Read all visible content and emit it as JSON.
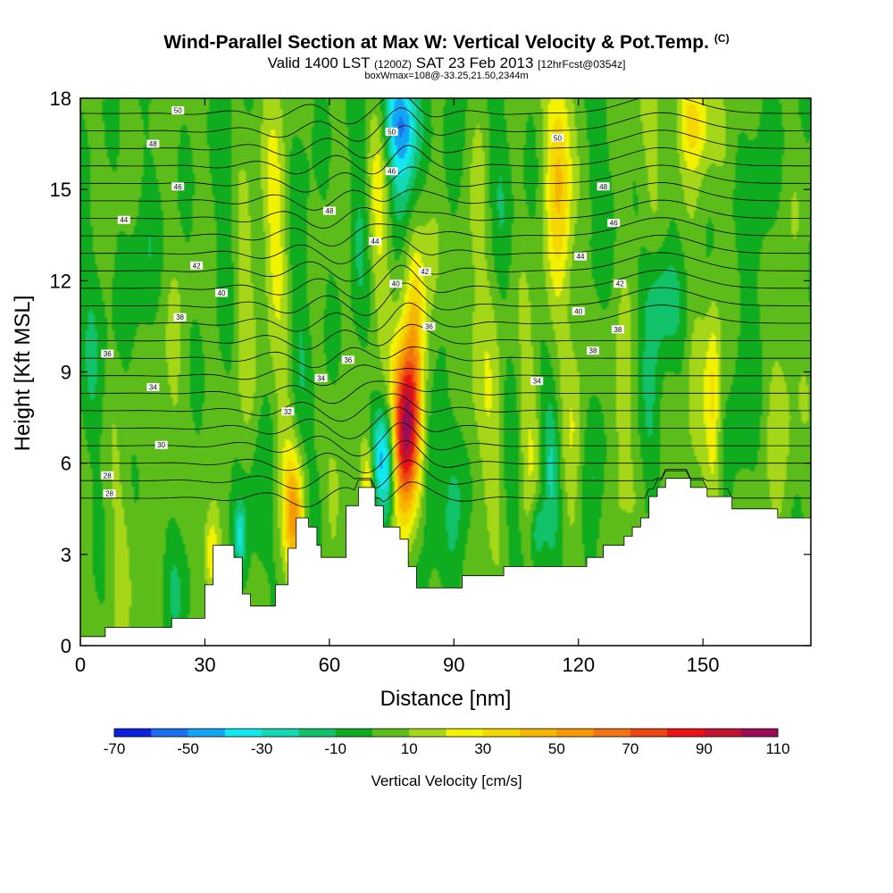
{
  "title": {
    "main": "Wind-Parallel Section at Max W: Vertical Velocity & Pot.Temp.",
    "copyright": "(C)",
    "valid_prefix": "Valid 1400 LST",
    "valid_utc": "(1200Z)",
    "valid_date": "SAT 23 Feb 2013",
    "forecast": "[12hrFcst@0354z]",
    "box_info": "boxWmax=108@-33.25,21.50,2344m"
  },
  "chart_data": {
    "type": "heatmap",
    "xlabel": "Distance [nm]",
    "ylabel": "Height [Kft MSL]",
    "xlim": [
      0,
      176
    ],
    "ylim": [
      0,
      18
    ],
    "xticks": [
      "0",
      "30",
      "60",
      "90",
      "120",
      "150"
    ],
    "yticks": [
      "0",
      "3",
      "6",
      "9",
      "12",
      "15",
      "18"
    ],
    "grid": false,
    "colorbar": {
      "label": "Vertical Velocity [cm/s]",
      "tick_labels": [
        "-70",
        "-50",
        "-30",
        "-10",
        "10",
        "30",
        "50",
        "70",
        "90",
        "110"
      ],
      "levels": [
        -70,
        -60,
        -50,
        -40,
        -30,
        -20,
        -10,
        0,
        10,
        20,
        30,
        40,
        50,
        60,
        70,
        80,
        90,
        100,
        110
      ],
      "colors": [
        "#0a22e0",
        "#1a6ff2",
        "#12a5f3",
        "#13e8f0",
        "#14d9b4",
        "#12c26a",
        "#0eac1e",
        "#5cbc1a",
        "#a5d718",
        "#f2f200",
        "#f4d800",
        "#f7b700",
        "#f79a00",
        "#f37212",
        "#ee4610",
        "#ea1214",
        "#c21230",
        "#9a0c56"
      ]
    },
    "terrain_kft": [
      [
        0,
        0.3
      ],
      [
        6,
        0.3
      ],
      [
        6,
        0.6
      ],
      [
        22,
        0.6
      ],
      [
        22,
        0.9
      ],
      [
        30,
        0.9
      ],
      [
        30,
        2.0
      ],
      [
        32,
        2.0
      ],
      [
        32,
        3.3
      ],
      [
        37,
        3.3
      ],
      [
        37,
        2.9
      ],
      [
        39,
        2.9
      ],
      [
        39,
        1.7
      ],
      [
        41,
        1.7
      ],
      [
        41,
        1.3
      ],
      [
        47,
        1.3
      ],
      [
        47,
        2.0
      ],
      [
        50,
        2.0
      ],
      [
        50,
        3.2
      ],
      [
        52,
        3.2
      ],
      [
        52,
        4.2
      ],
      [
        55,
        4.2
      ],
      [
        55,
        3.9
      ],
      [
        57,
        3.9
      ],
      [
        57,
        3.3
      ],
      [
        58,
        3.3
      ],
      [
        58,
        2.9
      ],
      [
        64,
        2.9
      ],
      [
        64,
        4.6
      ],
      [
        67,
        4.6
      ],
      [
        67,
        5.2
      ],
      [
        71,
        5.2
      ],
      [
        71,
        4.6
      ],
      [
        73,
        4.6
      ],
      [
        73,
        3.9
      ],
      [
        77,
        3.9
      ],
      [
        77,
        3.5
      ],
      [
        79,
        3.5
      ],
      [
        79,
        2.6
      ],
      [
        81,
        2.6
      ],
      [
        81,
        1.9
      ],
      [
        92,
        1.9
      ],
      [
        92,
        2.3
      ],
      [
        102,
        2.3
      ],
      [
        102,
        2.6
      ],
      [
        122,
        2.6
      ],
      [
        122,
        2.9
      ],
      [
        126,
        2.9
      ],
      [
        126,
        3.3
      ],
      [
        131,
        3.3
      ],
      [
        131,
        3.6
      ],
      [
        133,
        3.6
      ],
      [
        133,
        3.9
      ],
      [
        135,
        3.9
      ],
      [
        135,
        4.2
      ],
      [
        137,
        4.2
      ],
      [
        137,
        4.9
      ],
      [
        139,
        4.9
      ],
      [
        139,
        5.2
      ],
      [
        141,
        5.2
      ],
      [
        141,
        5.5
      ],
      [
        147,
        5.5
      ],
      [
        147,
        5.2
      ],
      [
        151,
        5.2
      ],
      [
        151,
        4.9
      ],
      [
        157,
        4.9
      ],
      [
        157,
        4.5
      ],
      [
        168,
        4.5
      ],
      [
        168,
        4.2
      ],
      [
        176,
        4.2
      ]
    ],
    "w_features": [
      {
        "x": 78.5,
        "y": 7.2,
        "w": 110,
        "sx": 2.4,
        "sy": 1.9
      },
      {
        "x": 80.5,
        "y": 10.5,
        "w": 25,
        "sx": 1.6,
        "sy": 1.8
      },
      {
        "x": 74,
        "y": 6.0,
        "w": -45,
        "sx": 1.5,
        "sy": 1.4
      },
      {
        "x": 71.5,
        "y": 6.2,
        "w": -25,
        "sx": 1.2,
        "sy": 1.0
      },
      {
        "x": 69.5,
        "y": 5.5,
        "w": 30,
        "sx": 1.2,
        "sy": 1.0
      },
      {
        "x": 51.5,
        "y": 4.3,
        "w": 45,
        "sx": 1.7,
        "sy": 1.4
      },
      {
        "x": 49,
        "y": 6.5,
        "w": 12,
        "sx": 2.0,
        "sy": 2.0
      },
      {
        "x": 43.5,
        "y": 4.3,
        "w": -12,
        "sx": 2.2,
        "sy": 2.2
      },
      {
        "x": 38.5,
        "y": 3.6,
        "w": -30,
        "sx": 1.0,
        "sy": 0.7
      },
      {
        "x": 31.5,
        "y": 3.0,
        "w": 30,
        "sx": 1.4,
        "sy": 1.0
      },
      {
        "x": 57,
        "y": 5.0,
        "w": -10,
        "sx": 1.8,
        "sy": 1.8
      },
      {
        "x": 62,
        "y": 4.5,
        "w": 12,
        "sx": 2.2,
        "sy": 1.8
      },
      {
        "x": 47,
        "y": 14.0,
        "w": 22,
        "sx": 2.2,
        "sy": 2.6
      },
      {
        "x": 53,
        "y": 12.0,
        "w": -12,
        "sx": 1.8,
        "sy": 3.5
      },
      {
        "x": 40,
        "y": 11.5,
        "w": 12,
        "sx": 2.0,
        "sy": 2.8
      },
      {
        "x": 35,
        "y": 15.0,
        "w": -10,
        "sx": 2.0,
        "sy": 2.5
      },
      {
        "x": 21,
        "y": 7.5,
        "w": 10,
        "sx": 2.5,
        "sy": 2.5
      },
      {
        "x": 15,
        "y": 12.5,
        "w": -10,
        "sx": 2.5,
        "sy": 2.5
      },
      {
        "x": 10,
        "y": 3.5,
        "w": 10,
        "sx": 2.5,
        "sy": 2.0
      },
      {
        "x": 3,
        "y": 10.0,
        "w": -10,
        "sx": 2.5,
        "sy": 3.0
      },
      {
        "x": 23,
        "y": 2.5,
        "w": -12,
        "sx": 2.5,
        "sy": 1.6
      },
      {
        "x": 77,
        "y": 17.5,
        "w": -40,
        "sx": 3.0,
        "sy": 1.2
      },
      {
        "x": 78,
        "y": 16.2,
        "w": -25,
        "sx": 2.4,
        "sy": 1.5
      },
      {
        "x": 72,
        "y": 14.5,
        "w": 22,
        "sx": 1.8,
        "sy": 2.2
      },
      {
        "x": 67,
        "y": 14.0,
        "w": -12,
        "sx": 1.8,
        "sy": 2.5
      },
      {
        "x": 85,
        "y": 12.5,
        "w": 12,
        "sx": 2.2,
        "sy": 3.0
      },
      {
        "x": 89,
        "y": 15.0,
        "w": -12,
        "sx": 2.0,
        "sy": 2.5
      },
      {
        "x": 95,
        "y": 12.0,
        "w": 12,
        "sx": 2.5,
        "sy": 3.0
      },
      {
        "x": 101,
        "y": 16.0,
        "w": -10,
        "sx": 2.2,
        "sy": 2.5
      },
      {
        "x": 115.5,
        "y": 16.2,
        "w": 35,
        "sx": 2.3,
        "sy": 2.2
      },
      {
        "x": 115.5,
        "y": 12.5,
        "w": 12,
        "sx": 2.5,
        "sy": 2.5
      },
      {
        "x": 124,
        "y": 16.0,
        "w": -10,
        "sx": 2.5,
        "sy": 2.5
      },
      {
        "x": 137,
        "y": 16.5,
        "w": 10,
        "sx": 2.5,
        "sy": 2.5
      },
      {
        "x": 148,
        "y": 17.3,
        "w": 32,
        "sx": 3.0,
        "sy": 1.2
      },
      {
        "x": 140,
        "y": 11.5,
        "w": -22,
        "sx": 3.0,
        "sy": 1.4
      },
      {
        "x": 164,
        "y": 14.0,
        "w": -10,
        "sx": 2.5,
        "sy": 3.0
      },
      {
        "x": 148,
        "y": 8.0,
        "w": 10,
        "sx": 2.0,
        "sy": 2.5
      },
      {
        "x": 152.5,
        "y": 8.0,
        "w": 28,
        "sx": 1.3,
        "sy": 2.5
      },
      {
        "x": 159,
        "y": 8.0,
        "w": -10,
        "sx": 2.0,
        "sy": 2.5
      },
      {
        "x": 169,
        "y": 8.5,
        "w": 12,
        "sx": 2.5,
        "sy": 3.0
      },
      {
        "x": 91,
        "y": 5.5,
        "w": -15,
        "sx": 2.3,
        "sy": 2.3
      },
      {
        "x": 84,
        "y": 6.0,
        "w": -20,
        "sx": 1.8,
        "sy": 2.0
      },
      {
        "x": 98,
        "y": 6.5,
        "w": 15,
        "sx": 2.5,
        "sy": 2.5
      },
      {
        "x": 104,
        "y": 5.0,
        "w": -10,
        "sx": 2.0,
        "sy": 2.5
      },
      {
        "x": 108,
        "y": 7.0,
        "w": 15,
        "sx": 2.0,
        "sy": 2.5
      },
      {
        "x": 113.5,
        "y": 6.0,
        "w": -25,
        "sx": 1.6,
        "sy": 1.7
      },
      {
        "x": 119,
        "y": 7.0,
        "w": 15,
        "sx": 1.8,
        "sy": 2.5
      },
      {
        "x": 124,
        "y": 6.5,
        "w": -12,
        "sx": 2.0,
        "sy": 2.5
      },
      {
        "x": 130,
        "y": 7.0,
        "w": 15,
        "sx": 2.0,
        "sy": 2.5
      },
      {
        "x": 137,
        "y": 7.0,
        "w": -10,
        "sx": 2.0,
        "sy": 2.5
      },
      {
        "x": 110,
        "y": 3.8,
        "w": -25,
        "sx": 1.2,
        "sy": 0.8
      }
    ],
    "theta_contours": {
      "levels": [
        28,
        29,
        30,
        31,
        32,
        33,
        34,
        35,
        36,
        37,
        38,
        39,
        40,
        41,
        42,
        43,
        44,
        45,
        46,
        47,
        48,
        49,
        50
      ],
      "labels": [
        {
          "x": 7,
          "y": 5.0,
          "text": "28"
        },
        {
          "x": 6.5,
          "y": 5.6,
          "text": "28"
        },
        {
          "x": 19.5,
          "y": 6.6,
          "text": "30"
        },
        {
          "x": 50,
          "y": 7.7,
          "text": "32"
        },
        {
          "x": 17.5,
          "y": 8.5,
          "text": "34"
        },
        {
          "x": 58,
          "y": 8.8,
          "text": "34"
        },
        {
          "x": 110,
          "y": 8.7,
          "text": "34"
        },
        {
          "x": 6.5,
          "y": 9.6,
          "text": "36"
        },
        {
          "x": 64.5,
          "y": 9.4,
          "text": "36"
        },
        {
          "x": 84,
          "y": 10.5,
          "text": "36"
        },
        {
          "x": 24,
          "y": 10.8,
          "text": "38"
        },
        {
          "x": 129.5,
          "y": 10.4,
          "text": "38"
        },
        {
          "x": 123.5,
          "y": 9.7,
          "text": "38"
        },
        {
          "x": 34,
          "y": 11.6,
          "text": "40"
        },
        {
          "x": 76,
          "y": 11.9,
          "text": "40"
        },
        {
          "x": 120,
          "y": 11.0,
          "text": "40"
        },
        {
          "x": 28,
          "y": 12.5,
          "text": "42"
        },
        {
          "x": 83,
          "y": 12.3,
          "text": "42"
        },
        {
          "x": 130,
          "y": 11.9,
          "text": "42"
        },
        {
          "x": 10.5,
          "y": 14.0,
          "text": "44"
        },
        {
          "x": 71,
          "y": 13.3,
          "text": "44"
        },
        {
          "x": 120.5,
          "y": 12.8,
          "text": "44"
        },
        {
          "x": 23.5,
          "y": 15.1,
          "text": "46"
        },
        {
          "x": 75,
          "y": 15.6,
          "text": "46"
        },
        {
          "x": 128.5,
          "y": 13.9,
          "text": "46"
        },
        {
          "x": 17.5,
          "y": 16.5,
          "text": "48"
        },
        {
          "x": 60,
          "y": 14.3,
          "text": "48"
        },
        {
          "x": 126,
          "y": 15.1,
          "text": "48"
        },
        {
          "x": 23.5,
          "y": 17.6,
          "text": "50"
        },
        {
          "x": 75,
          "y": 16.9,
          "text": "50"
        },
        {
          "x": 115,
          "y": 16.7,
          "text": "50"
        }
      ]
    }
  }
}
